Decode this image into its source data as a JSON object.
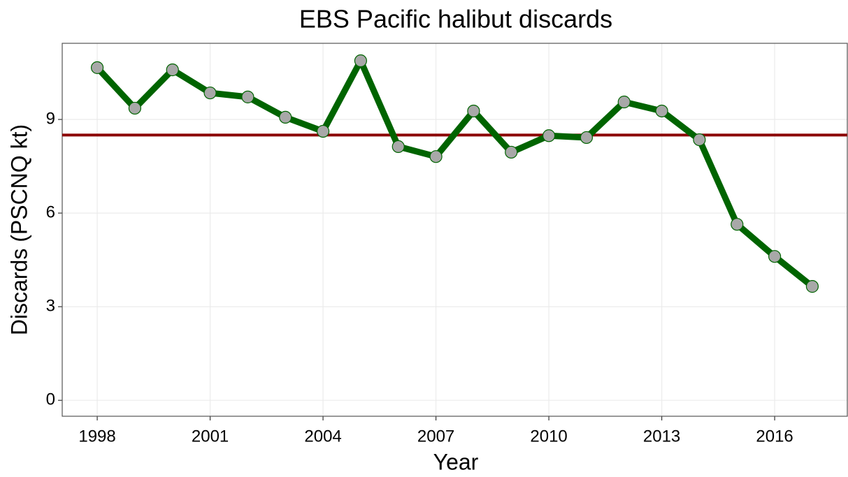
{
  "chart_data": {
    "type": "line",
    "title": "EBS Pacific halibut discards",
    "x_label": "Year",
    "y_label": "Discards (PSCNQ kt)",
    "x": [
      1998,
      1999,
      2000,
      2001,
      2002,
      2003,
      2004,
      2005,
      2006,
      2007,
      2008,
      2009,
      2010,
      2011,
      2012,
      2013,
      2014,
      2015,
      2016,
      2017
    ],
    "series": [
      {
        "color": "#006400",
        "marker_color": "#a8a8a8",
        "values": [
          10.66,
          9.36,
          10.59,
          9.85,
          9.72,
          9.07,
          8.62,
          10.88,
          8.13,
          7.81,
          9.27,
          7.95,
          8.48,
          8.42,
          9.56,
          9.27,
          8.35,
          5.64,
          4.61,
          3.65
        ]
      }
    ],
    "reference_line": {
      "value": 8.5,
      "color": "#8b0000"
    },
    "xlim": [
      1997.07,
      2017.93
    ],
    "xticks": [
      1998,
      2001,
      2004,
      2007,
      2010,
      2013,
      2016
    ],
    "ylim": [
      -0.51,
      11.44
    ],
    "yticks": [
      0,
      3,
      6,
      9
    ],
    "grid": true
  }
}
